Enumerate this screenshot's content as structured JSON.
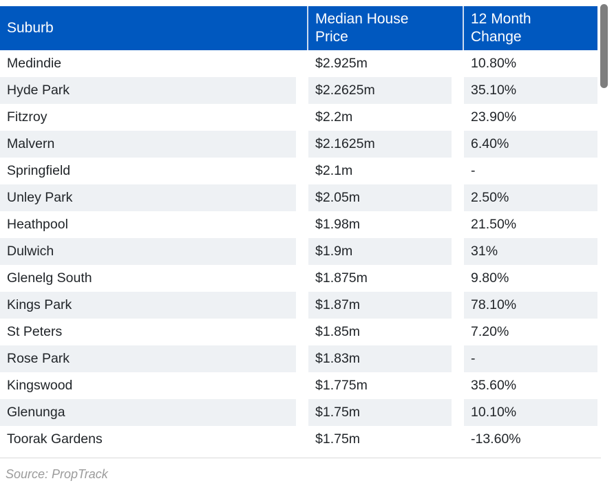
{
  "chart_data": {
    "type": "table",
    "columns": [
      "Suburb",
      "Median House Price",
      "12 Month Change"
    ],
    "rows": [
      [
        "Medindie",
        "$2.925m",
        "10.80%"
      ],
      [
        "Hyde Park",
        "$2.2625m",
        "35.10%"
      ],
      [
        "Fitzroy",
        "$2.2m",
        "23.90%"
      ],
      [
        "Malvern",
        "$2.1625m",
        "6.40%"
      ],
      [
        "Springfield",
        "$2.1m",
        "-"
      ],
      [
        "Unley Park",
        "$2.05m",
        "2.50%"
      ],
      [
        "Heathpool",
        "$1.98m",
        "21.50%"
      ],
      [
        "Dulwich",
        "$1.9m",
        "31%"
      ],
      [
        "Glenelg South",
        "$1.875m",
        "9.80%"
      ],
      [
        "Kings Park",
        "$1.87m",
        "78.10%"
      ],
      [
        "St Peters",
        "$1.85m",
        "7.20%"
      ],
      [
        "Rose Park",
        "$1.83m",
        "-"
      ],
      [
        "Kingswood",
        "$1.775m",
        "35.60%"
      ],
      [
        "Glenunga",
        "$1.75m",
        "10.10%"
      ],
      [
        "Toorak Gardens",
        "$1.75m",
        "-13.60%"
      ]
    ],
    "source": "Source: PropTrack",
    "layout": {
      "striped_rows": true,
      "header_position": "top",
      "grid": false
    }
  },
  "colors": {
    "header_bg": "#0058bf",
    "header_text": "#ffffff",
    "header_divider": "#cfdcf0",
    "row_stripe": "#eef1f4",
    "row_gap": "#ffffff",
    "body_text": "#212529",
    "divider": "#dadada",
    "source_text": "#9b9b9b",
    "scrollbar_thumb": "#7e7e7e"
  }
}
